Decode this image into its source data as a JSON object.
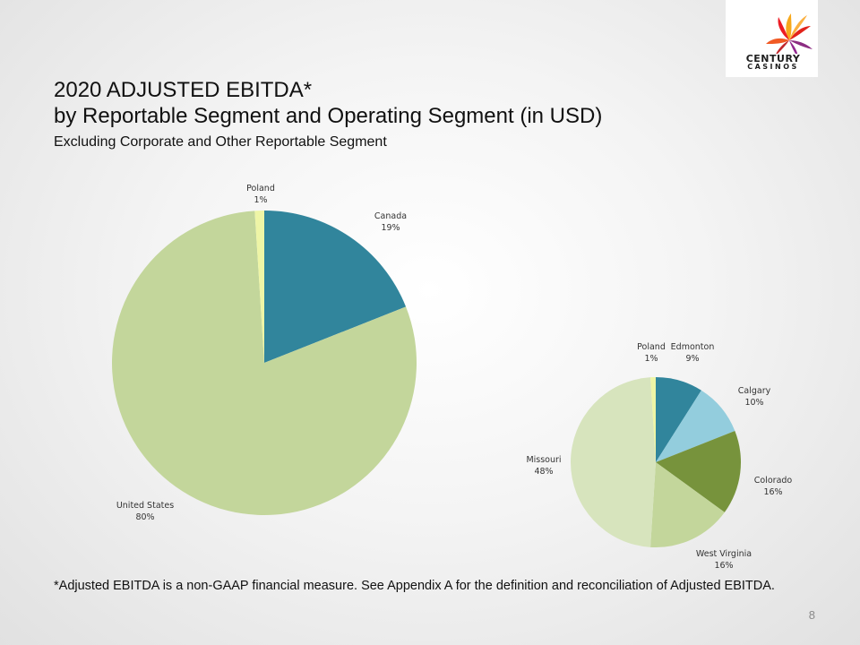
{
  "logo": {
    "line1": "CENTURY",
    "line2": "CASINOS"
  },
  "title": {
    "line1": "2020 ADJUSTED EBITDA*",
    "line2": "by Reportable Segment and Operating Segment (in USD)"
  },
  "subtitle": "Excluding Corporate and Other Reportable Segment",
  "chart_data": [
    {
      "type": "pie",
      "title": "",
      "slices": [
        {
          "name": "Canada",
          "label": "19%",
          "value": 19,
          "color": "#31859c"
        },
        {
          "name": "United States",
          "label": "80%",
          "value": 80,
          "color": "#c3d69b"
        },
        {
          "name": "Poland",
          "label": "1%",
          "value": 1,
          "color": "#eef5a6"
        }
      ]
    },
    {
      "type": "pie",
      "title": "",
      "slices": [
        {
          "name": "Edmonton",
          "label": "9%",
          "value": 9,
          "color": "#31859c"
        },
        {
          "name": "Calgary",
          "label": "10%",
          "value": 10,
          "color": "#93cddd"
        },
        {
          "name": "Colorado",
          "label": "16%",
          "value": 16,
          "color": "#77933c"
        },
        {
          "name": "West Virginia",
          "label": "16%",
          "value": 16,
          "color": "#c3d69b"
        },
        {
          "name": "Missouri",
          "label": "48%",
          "value": 48,
          "color": "#d7e4bd"
        },
        {
          "name": "Poland",
          "label": "1%",
          "value": 1,
          "color": "#eef5a6"
        }
      ]
    }
  ],
  "footnote": "*Adjusted EBITDA is a non-GAAP financial measure. See Appendix A for the definition and reconciliation of Adjusted EBITDA.",
  "page_number": "8"
}
